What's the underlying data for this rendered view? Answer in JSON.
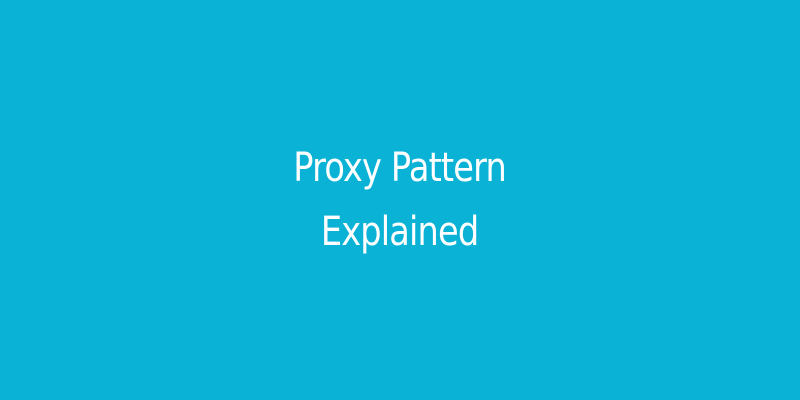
{
  "banner": {
    "background_color": "#0ab3d6",
    "text_color": "#ffffff",
    "title_line_1": "Proxy Pattern",
    "title_line_2": "Explained"
  }
}
